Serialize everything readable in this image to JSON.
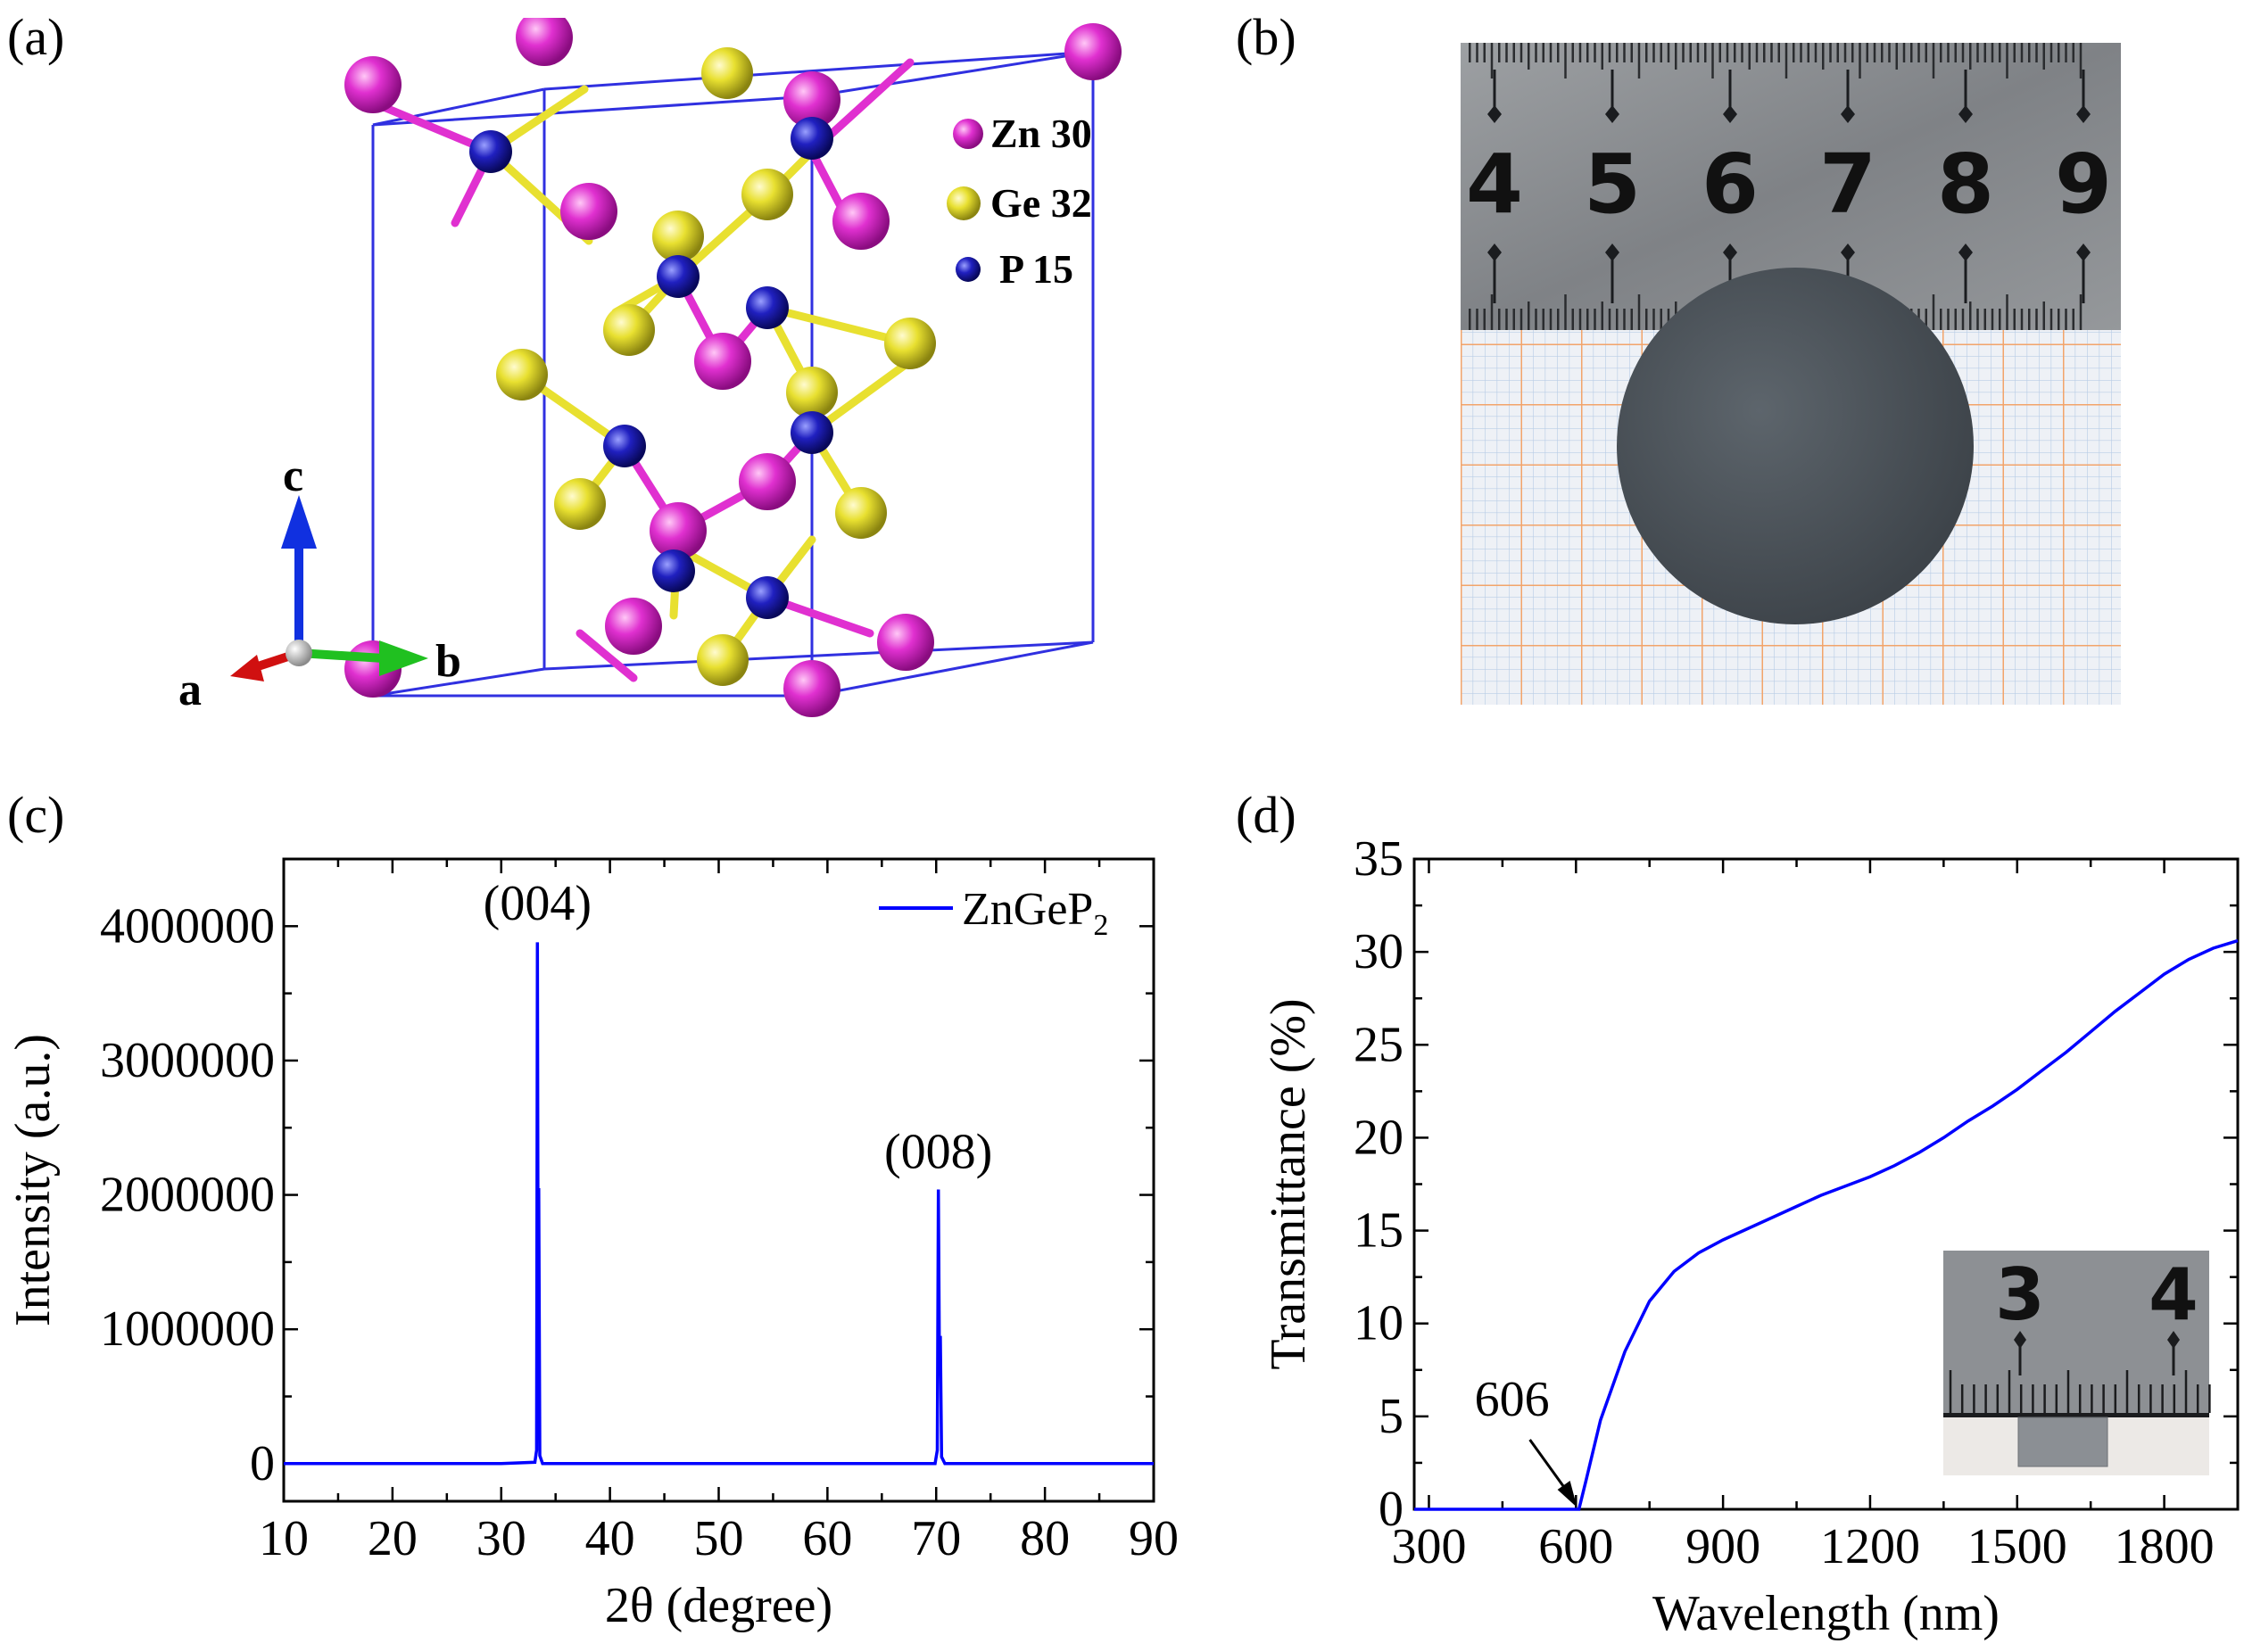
{
  "panels": {
    "a": "(a)",
    "b": "(b)",
    "c": "(c)",
    "d": "(d)"
  },
  "structure": {
    "legend": [
      {
        "label": "Zn 30",
        "color": "#e030d0"
      },
      {
        "label": "Ge 32",
        "color": "#e8e030"
      },
      {
        "label": "P 15",
        "color": "#2020c0"
      }
    ],
    "axes": {
      "a": "a",
      "b": "b",
      "c": "c"
    },
    "colors": {
      "a": "#d01010",
      "b": "#20c020",
      "c": "#1030e0",
      "cell": "#3030e0",
      "bond_zn": "#e030d0",
      "bond_ge": "#e8e030"
    }
  },
  "photo": {
    "ruler_numbers": [
      "4",
      "5",
      "6",
      "7",
      "8",
      "9"
    ],
    "colors": {
      "ruler": "#8c8f92",
      "grid_paper": "#eef1f6",
      "grid_minor": "#b9cde6",
      "grid_major": "#f2a46a",
      "sample": "#4a5157"
    }
  },
  "inset": {
    "ruler_numbers": [
      "3",
      "4"
    ]
  },
  "chart_data": [
    {
      "type": "line",
      "panel": "(c)",
      "xlabel": "2θ (degree)",
      "ylabel": "Intensity (a.u.)",
      "xlim": [
        10,
        90
      ],
      "ylim": [
        -280000,
        4500000
      ],
      "xticks": [
        10,
        20,
        30,
        40,
        50,
        60,
        70,
        80,
        90
      ],
      "yticks": [
        0,
        1000000,
        2000000,
        3000000,
        4000000
      ],
      "grid": false,
      "legend_position": "top-right",
      "series": [
        {
          "name": "ZnGeP",
          "name_subscript": "2",
          "color": "#0000ff",
          "points": [
            [
              10,
              0
            ],
            [
              30,
              0
            ],
            [
              33.1,
              10000
            ],
            [
              33.25,
              100000
            ],
            [
              33.33,
              3880000
            ],
            [
              33.4,
              900000
            ],
            [
              33.45,
              2050000
            ],
            [
              33.55,
              60000
            ],
            [
              33.8,
              0
            ],
            [
              69.9,
              0
            ],
            [
              70.1,
              100000
            ],
            [
              70.2,
              2040000
            ],
            [
              70.3,
              700000
            ],
            [
              70.38,
              950000
            ],
            [
              70.5,
              50000
            ],
            [
              70.8,
              0
            ],
            [
              90,
              0
            ]
          ]
        }
      ],
      "annotations": [
        {
          "text": "(004)",
          "x": 33.33,
          "y": 4050000
        },
        {
          "text": "(008)",
          "x": 70.2,
          "y": 2200000
        }
      ]
    },
    {
      "type": "line",
      "panel": "(d)",
      "xlabel": "Wavelength (nm)",
      "ylabel": "Transmittance (%)",
      "xlim": [
        270,
        1950
      ],
      "ylim": [
        0,
        35
      ],
      "xticks": [
        300,
        600,
        900,
        1200,
        1500,
        1800
      ],
      "yticks": [
        0,
        5,
        10,
        15,
        20,
        25,
        30,
        35
      ],
      "grid": false,
      "series": [
        {
          "name": "",
          "color": "#0000ff",
          "points": [
            [
              270,
              0
            ],
            [
              606,
              0
            ],
            [
              620,
              1.5
            ],
            [
              650,
              4.8
            ],
            [
              700,
              8.5
            ],
            [
              750,
              11.2
            ],
            [
              800,
              12.8
            ],
            [
              850,
              13.8
            ],
            [
              900,
              14.5
            ],
            [
              950,
              15.1
            ],
            [
              1000,
              15.7
            ],
            [
              1050,
              16.3
            ],
            [
              1100,
              16.9
            ],
            [
              1150,
              17.4
            ],
            [
              1200,
              17.9
            ],
            [
              1250,
              18.5
            ],
            [
              1300,
              19.2
            ],
            [
              1350,
              20.0
            ],
            [
              1400,
              20.9
            ],
            [
              1450,
              21.7
            ],
            [
              1500,
              22.6
            ],
            [
              1550,
              23.6
            ],
            [
              1600,
              24.6
            ],
            [
              1650,
              25.7
            ],
            [
              1700,
              26.8
            ],
            [
              1750,
              27.8
            ],
            [
              1800,
              28.8
            ],
            [
              1850,
              29.6
            ],
            [
              1900,
              30.2
            ],
            [
              1950,
              30.6
            ]
          ]
        }
      ],
      "annotations": [
        {
          "text": "606",
          "x": 606,
          "y": 0,
          "arrow": true
        }
      ]
    }
  ]
}
